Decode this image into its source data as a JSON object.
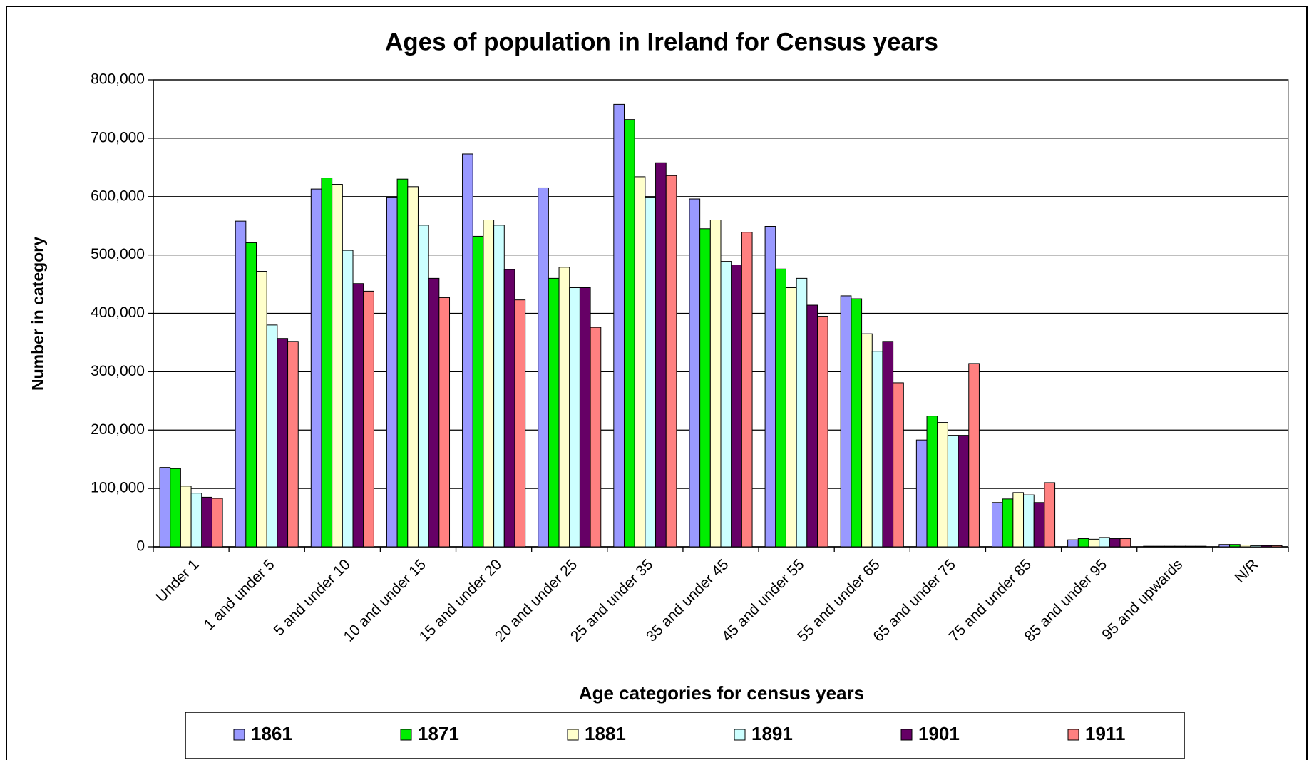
{
  "chart_data": {
    "type": "bar",
    "title": "Ages of population in Ireland for Census years",
    "x_label": "Age categories for census years",
    "y_label": "Number in category",
    "categories": [
      "Under 1",
      "1 and under 5",
      "5 and under 10",
      "10 and under 15",
      "15 and under 20",
      "20 and under 25",
      "25 and under 35",
      "35 and under 45",
      "45 and under 55",
      "55 and under 65",
      "65 and under 75",
      "75 and under 85",
      "85 and under 95",
      "95 and upwards",
      "N/R"
    ],
    "series": [
      {
        "name": "1861",
        "color": "#9999ff",
        "values": [
          136000,
          558000,
          613000,
          598000,
          673000,
          615000,
          758000,
          596000,
          549000,
          430000,
          183000,
          76000,
          12000,
          1000,
          4000
        ]
      },
      {
        "name": "1871",
        "color": "#00ee00",
        "values": [
          134000,
          521000,
          632000,
          630000,
          532000,
          460000,
          732000,
          545000,
          476000,
          425000,
          224000,
          82000,
          14000,
          1000,
          4000
        ]
      },
      {
        "name": "1881",
        "color": "#ffffcc",
        "values": [
          104000,
          472000,
          621000,
          617000,
          560000,
          479000,
          634000,
          560000,
          444000,
          365000,
          213000,
          93000,
          13000,
          1000,
          3000
        ]
      },
      {
        "name": "1891",
        "color": "#ccffff",
        "values": [
          92000,
          380000,
          508000,
          551000,
          551000,
          444000,
          598000,
          489000,
          460000,
          335000,
          191000,
          89000,
          16000,
          1000,
          2000
        ]
      },
      {
        "name": "1901",
        "color": "#660066",
        "values": [
          85000,
          357000,
          451000,
          460000,
          475000,
          444000,
          658000,
          483000,
          414000,
          352000,
          191000,
          76000,
          14000,
          1000,
          2000
        ]
      },
      {
        "name": "1911",
        "color": "#ff8080",
        "values": [
          83000,
          352000,
          438000,
          427000,
          423000,
          376000,
          636000,
          539000,
          395000,
          281000,
          314000,
          110000,
          14000,
          1000,
          2000
        ]
      }
    ],
    "ylim": [
      0,
      800000
    ],
    "yticks": [
      0,
      {
        "value": 100000,
        "label": "100,000"
      },
      {
        "value": 200000,
        "label": "200,000"
      },
      {
        "value": 300000,
        "label": "300,000"
      },
      {
        "value": 400000,
        "label": "400,000"
      },
      {
        "value": 500000,
        "label": "500,000"
      },
      {
        "value": 600000,
        "label": "600,000"
      },
      {
        "value": 700000,
        "label": "700,000"
      },
      {
        "value": 800000,
        "label": "800,000"
      }
    ],
    "grid": true,
    "legend": "bottom"
  }
}
